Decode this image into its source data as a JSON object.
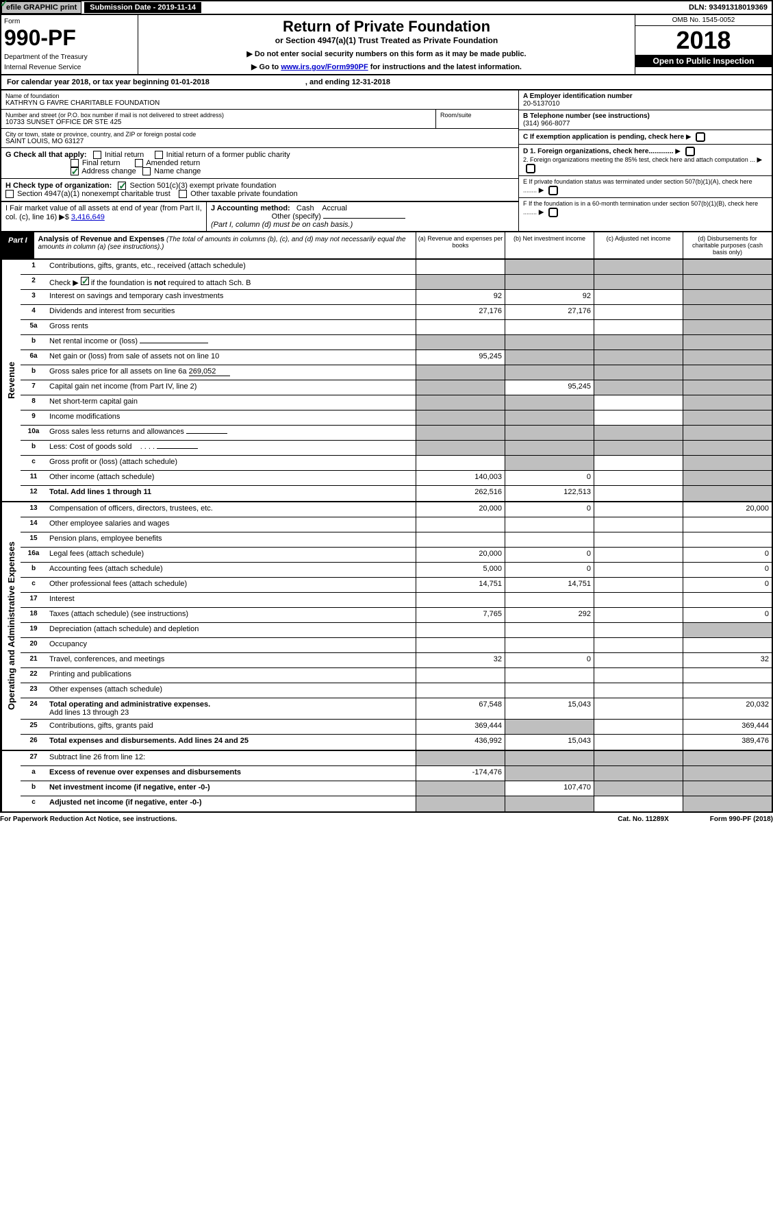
{
  "topbar": {
    "efile": "efile GRAPHIC print",
    "subdate_label": "Submission Date - 2019-11-14",
    "dln": "DLN: 93491318019369"
  },
  "header": {
    "form_word": "Form",
    "form_num": "990-PF",
    "dept": "Department of the Treasury",
    "irs": "Internal Revenue Service",
    "title": "Return of Private Foundation",
    "subtitle": "or Section 4947(a)(1) Trust Treated as Private Foundation",
    "note1": "▶ Do not enter social security numbers on this form as it may be made public.",
    "note2_pre": "▶ Go to ",
    "note2_link": "www.irs.gov/Form990PF",
    "note2_post": " for instructions and the latest information.",
    "omb": "OMB No. 1545-0052",
    "year": "2018",
    "open": "Open to Public Inspection"
  },
  "calrow": {
    "text": "For calendar year 2018, or tax year beginning 01-01-2018",
    "end": ", and ending 12-31-2018"
  },
  "info": {
    "name_lbl": "Name of foundation",
    "name": "KATHRYN G FAVRE CHARITABLE FOUNDATION",
    "addr_lbl": "Number and street (or P.O. box number if mail is not delivered to street address)",
    "addr": "10733 SUNSET OFFICE DR STE 425",
    "room_lbl": "Room/suite",
    "city_lbl": "City or town, state or province, country, and ZIP or foreign postal code",
    "city": "SAINT LOUIS, MO  63127",
    "a_lbl": "A Employer identification number",
    "a_val": "20-5137010",
    "b_lbl": "B Telephone number (see instructions)",
    "b_val": "(314) 966-8077",
    "c_lbl": "C If exemption application is pending, check here",
    "d1": "D 1. Foreign organizations, check here.............",
    "d2": "2. Foreign organizations meeting the 85% test, check here and attach computation ...",
    "e": "E  If private foundation status was terminated under section 507(b)(1)(A), check here ........",
    "f": "F  If the foundation is in a 60-month termination under section 507(b)(1)(B), check here ........"
  },
  "g": {
    "label": "G Check all that apply:",
    "initial": "Initial return",
    "final": "Final return",
    "addr": "Address change",
    "initial_former": "Initial return of a former public charity",
    "amended": "Amended return",
    "name": "Name change"
  },
  "h": {
    "label": "H Check type of organization:",
    "s501": "Section 501(c)(3) exempt private foundation",
    "s4947": "Section 4947(a)(1) nonexempt charitable trust",
    "other_tax": "Other taxable private foundation"
  },
  "i": {
    "label": "I Fair market value of all assets at end of year (from Part II, col. (c), line 16) ▶$ ",
    "val": "3,416,649"
  },
  "j": {
    "label": "J Accounting method:",
    "cash": "Cash",
    "accrual": "Accrual",
    "other": "Other (specify)",
    "note": "(Part I, column (d) must be on cash basis.)"
  },
  "part1": {
    "label": "Part I",
    "title": "Analysis of Revenue and Expenses",
    "note": "(The total of amounts in columns (b), (c), and (d) may not necessarily equal the amounts in column (a) (see instructions).)",
    "col_a": "(a)   Revenue and expenses per books",
    "col_b": "(b)  Net investment income",
    "col_c": "(c)  Adjusted net income",
    "col_d": "(d)  Disbursements for charitable purposes (cash basis only)"
  },
  "side": {
    "rev": "Revenue",
    "exp": "Operating and Administrative Expenses"
  },
  "rows": {
    "r1": "Contributions, gifts, grants, etc., received (attach schedule)",
    "r2": "Check ▶       if the foundation is not required to attach Sch. B",
    "r3": "Interest on savings and temporary cash investments",
    "r4": "Dividends and interest from securities",
    "r5a": "Gross rents",
    "r5b": "Net rental income or (loss)",
    "r6a": "Net gain or (loss) from sale of assets not on line 10",
    "r6b_pre": "Gross sales price for all assets on line 6a ",
    "r6b_val": "269,052",
    "r7": "Capital gain net income (from Part IV, line 2)",
    "r8": "Net short-term capital gain",
    "r9": "Income modifications",
    "r10a": "Gross sales less returns and allowances",
    "r10b": "Less: Cost of goods sold",
    "r10c": "Gross profit or (loss) (attach schedule)",
    "r11": "Other income (attach schedule)",
    "r12": "Total. Add lines 1 through 11",
    "r13": "Compensation of officers, directors, trustees, etc.",
    "r14": "Other employee salaries and wages",
    "r15": "Pension plans, employee benefits",
    "r16a": "Legal fees (attach schedule)",
    "r16b": "Accounting fees (attach schedule)",
    "r16c": "Other professional fees (attach schedule)",
    "r17": "Interest",
    "r18": "Taxes (attach schedule) (see instructions)",
    "r19": "Depreciation (attach schedule) and depletion",
    "r20": "Occupancy",
    "r21": "Travel, conferences, and meetings",
    "r22": "Printing and publications",
    "r23": "Other expenses (attach schedule)",
    "r24": "Total operating and administrative expenses.",
    "r24b": "Add lines 13 through 23",
    "r25": "Contributions, gifts, grants paid",
    "r26": "Total expenses and disbursements. Add lines 24 and 25",
    "r27": "Subtract line 26 from line 12:",
    "r27a": "Excess of revenue over expenses and disbursements",
    "r27b": "Net investment income (if negative, enter -0-)",
    "r27c": "Adjusted net income (if negative, enter -0-)"
  },
  "vals": {
    "r3": {
      "a": "92",
      "b": "92"
    },
    "r4": {
      "a": "27,176",
      "b": "27,176"
    },
    "r6a": {
      "a": "95,245"
    },
    "r7": {
      "b": "95,245"
    },
    "r11": {
      "a": "140,003",
      "b": "0"
    },
    "r12": {
      "a": "262,516",
      "b": "122,513"
    },
    "r13": {
      "a": "20,000",
      "b": "0",
      "d": "20,000"
    },
    "r16a": {
      "a": "20,000",
      "b": "0",
      "d": "0"
    },
    "r16b": {
      "a": "5,000",
      "b": "0",
      "d": "0"
    },
    "r16c": {
      "a": "14,751",
      "b": "14,751",
      "d": "0"
    },
    "r18": {
      "a": "7,765",
      "b": "292",
      "d": "0"
    },
    "r21": {
      "a": "32",
      "b": "0",
      "d": "32"
    },
    "r24": {
      "a": "67,548",
      "b": "15,043",
      "d": "20,032"
    },
    "r25": {
      "a": "369,444",
      "d": "369,444"
    },
    "r26": {
      "a": "436,992",
      "b": "15,043",
      "d": "389,476"
    },
    "r27a": {
      "a": "-174,476"
    },
    "r27b": {
      "b": "107,470"
    }
  },
  "footer": {
    "left": "For Paperwork Reduction Act Notice, see instructions.",
    "mid": "Cat. No. 11289X",
    "right": "Form 990-PF (2018)"
  }
}
